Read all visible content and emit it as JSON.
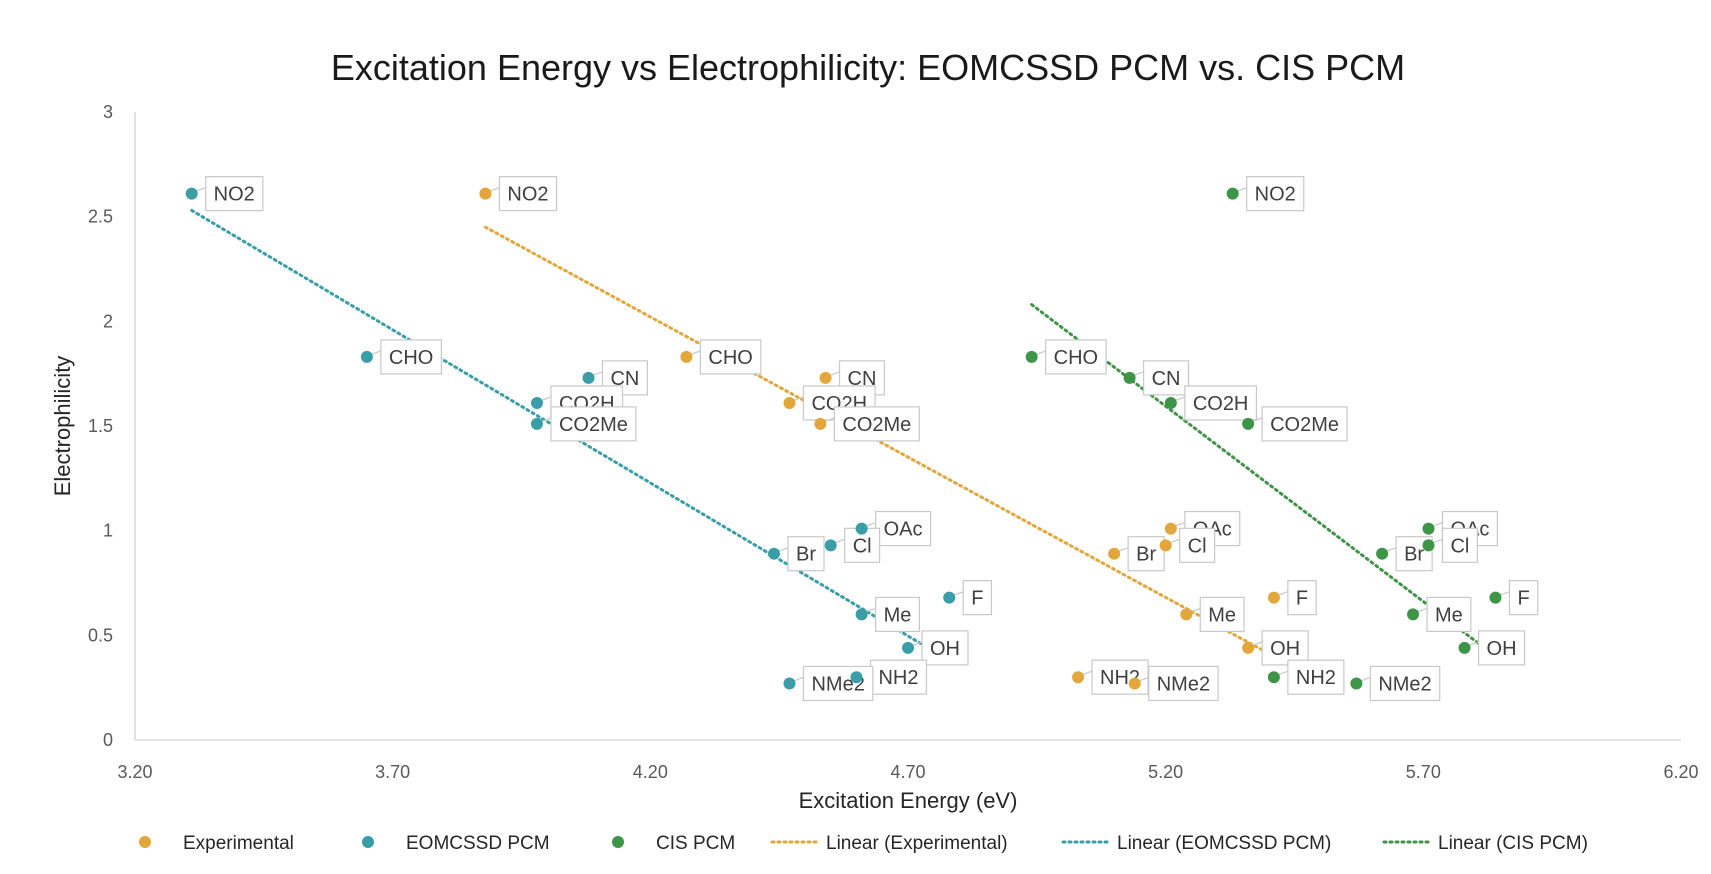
{
  "chart_data": {
    "type": "scatter",
    "title": "Excitation Energy vs Electrophilicity: EOMCSSD PCM vs. CIS PCM",
    "xlabel": "Excitation Energy (eV)",
    "ylabel": "Electrophilicity",
    "xlim": [
      3.2,
      6.2
    ],
    "ylim": [
      0,
      3
    ],
    "x_ticks": [
      "3.20",
      "3.70",
      "4.20",
      "4.70",
      "5.20",
      "5.70",
      "6.20"
    ],
    "y_ticks": [
      "0",
      "0.5",
      "1",
      "1.5",
      "2",
      "2.5",
      "3"
    ],
    "grid": false,
    "legend_position": "bottom",
    "series": [
      {
        "name": "Experimental",
        "color": "#E3A63A",
        "points": [
          {
            "label": "NO2",
            "x": 3.88,
            "y": 2.61
          },
          {
            "label": "CHO",
            "x": 4.27,
            "y": 1.83
          },
          {
            "label": "CN",
            "x": 4.54,
            "y": 1.73
          },
          {
            "label": "CO2H",
            "x": 4.47,
            "y": 1.61
          },
          {
            "label": "CO2Me",
            "x": 4.53,
            "y": 1.51
          },
          {
            "label": "OAc",
            "x": 5.21,
            "y": 1.01
          },
          {
            "label": "Br",
            "x": 5.1,
            "y": 0.89
          },
          {
            "label": "Cl",
            "x": 5.2,
            "y": 0.93
          },
          {
            "label": "F",
            "x": 5.41,
            "y": 0.68
          },
          {
            "label": "Me",
            "x": 5.24,
            "y": 0.6
          },
          {
            "label": "OH",
            "x": 5.36,
            "y": 0.44
          },
          {
            "label": "NH2",
            "x": 5.03,
            "y": 0.3
          },
          {
            "label": "NMe2",
            "x": 5.14,
            "y": 0.27
          }
        ]
      },
      {
        "name": "EOMCSSD PCM",
        "color": "#3A9EA8",
        "points": [
          {
            "label": "NO2",
            "x": 3.31,
            "y": 2.61
          },
          {
            "label": "CHO",
            "x": 3.65,
            "y": 1.83
          },
          {
            "label": "CN",
            "x": 4.08,
            "y": 1.73
          },
          {
            "label": "CO2H",
            "x": 3.98,
            "y": 1.61
          },
          {
            "label": "CO2Me",
            "x": 3.98,
            "y": 1.51
          },
          {
            "label": "OAc",
            "x": 4.61,
            "y": 1.01
          },
          {
            "label": "Br",
            "x": 4.44,
            "y": 0.89
          },
          {
            "label": "Cl",
            "x": 4.55,
            "y": 0.93
          },
          {
            "label": "F",
            "x": 4.78,
            "y": 0.68
          },
          {
            "label": "Me",
            "x": 4.61,
            "y": 0.6
          },
          {
            "label": "OH",
            "x": 4.7,
            "y": 0.44
          },
          {
            "label": "NH2",
            "x": 4.6,
            "y": 0.3
          },
          {
            "label": "NMe2",
            "x": 4.47,
            "y": 0.27
          }
        ]
      },
      {
        "name": "CIS PCM",
        "color": "#3E9447",
        "points": [
          {
            "label": "NO2",
            "x": 5.33,
            "y": 2.61
          },
          {
            "label": "CHO",
            "x": 4.94,
            "y": 1.83
          },
          {
            "label": "CN",
            "x": 5.13,
            "y": 1.73
          },
          {
            "label": "CO2H",
            "x": 5.21,
            "y": 1.61
          },
          {
            "label": "CO2Me",
            "x": 5.36,
            "y": 1.51
          },
          {
            "label": "OAc",
            "x": 5.71,
            "y": 1.01
          },
          {
            "label": "Br",
            "x": 5.62,
            "y": 0.89
          },
          {
            "label": "Cl",
            "x": 5.71,
            "y": 0.93
          },
          {
            "label": "F",
            "x": 5.84,
            "y": 0.68
          },
          {
            "label": "Me",
            "x": 5.68,
            "y": 0.6
          },
          {
            "label": "OH",
            "x": 5.78,
            "y": 0.44
          },
          {
            "label": "NH2",
            "x": 5.41,
            "y": 0.3
          },
          {
            "label": "NMe2",
            "x": 5.57,
            "y": 0.27
          }
        ]
      }
    ],
    "trendlines": [
      {
        "name": "Linear (Experimental)",
        "color": "#E3A63A",
        "x": [
          3.88,
          5.41
        ],
        "y": [
          2.45,
          0.4
        ]
      },
      {
        "name": "Linear (EOMCSSD PCM)",
        "color": "#3A9EA8",
        "x": [
          3.31,
          4.78
        ],
        "y": [
          2.53,
          0.38
        ]
      },
      {
        "name": "Linear (CIS PCM)",
        "color": "#3E9447",
        "x": [
          4.94,
          5.84
        ],
        "y": [
          2.08,
          0.4
        ]
      }
    ]
  }
}
